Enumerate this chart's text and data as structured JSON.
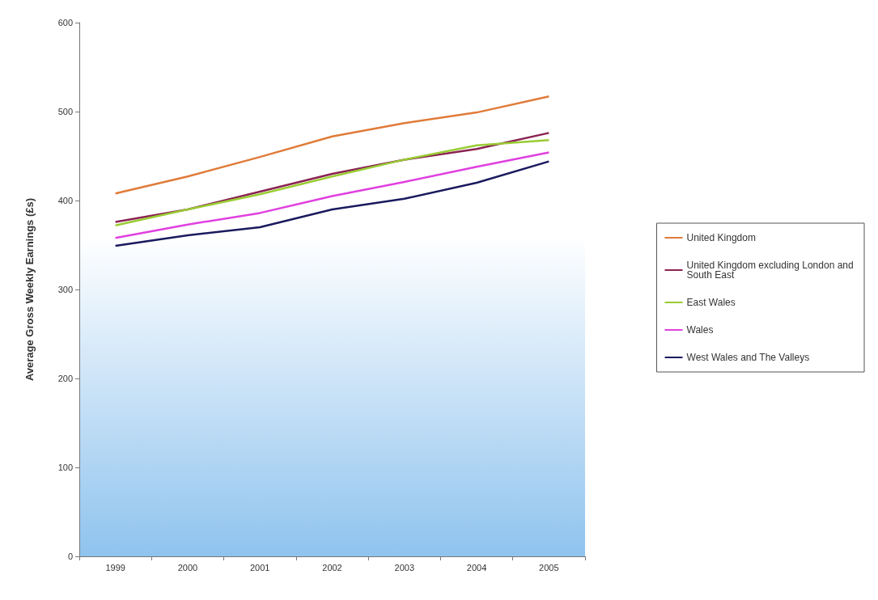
{
  "chart_data": {
    "type": "line",
    "ylabel": "Average Gross Weekly Earnings (£s)",
    "categories": [
      "1999",
      "2000",
      "2001",
      "2002",
      "2003",
      "2004",
      "2005"
    ],
    "series": [
      {
        "name": "United Kingdom",
        "color": "#e07b39",
        "values": [
          408,
          427,
          449,
          472,
          487,
          499,
          517
        ]
      },
      {
        "name": "United Kingdom excluding London and South East",
        "color": "#8b2252",
        "values": [
          376,
          390,
          410,
          430,
          446,
          458,
          476
        ]
      },
      {
        "name": "East Wales",
        "color": "#99cc33",
        "values": [
          372,
          390,
          407,
          427,
          446,
          462,
          468
        ]
      },
      {
        "name": "Wales",
        "color": "#e040e0",
        "values": [
          358,
          373,
          386,
          405,
          421,
          438,
          454
        ]
      },
      {
        "name": "West Wales and The Valleys",
        "color": "#1a1a5e",
        "values": [
          349,
          361,
          370,
          390,
          402,
          420,
          444
        ]
      }
    ],
    "ylim": [
      0,
      600
    ],
    "yticks": [
      0,
      100,
      200,
      300,
      400,
      500,
      600
    ],
    "grid": false,
    "legend": "right",
    "marker": "none",
    "line_style": "solid"
  }
}
